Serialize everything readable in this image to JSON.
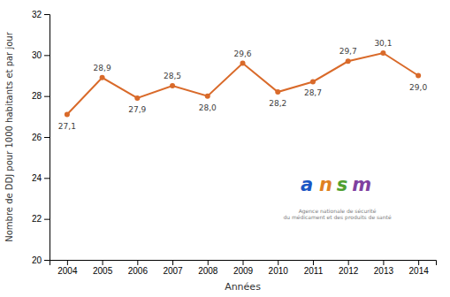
{
  "chart_data": {
    "type": "line",
    "x": [
      2004,
      2005,
      2006,
      2007,
      2008,
      2009,
      2010,
      2011,
      2012,
      2013,
      2014
    ],
    "values": [
      27.1,
      28.9,
      27.9,
      28.5,
      28.0,
      29.6,
      28.2,
      28.7,
      29.7,
      30.1,
      29.0
    ],
    "value_labels": [
      "27,1",
      "28,9",
      "27,9",
      "28,5",
      "28,0",
      "29,6",
      "28,2",
      "28,7",
      "29,7",
      "30,1",
      "29,0"
    ],
    "data_labels": true,
    "color": "#D96A2A",
    "marker": "circle",
    "xlabel": "Années",
    "ylabel": "Nombre de DDJ pour 1000 habitants et par jour",
    "xlim": [
      2003.5,
      2014.5
    ],
    "xticks": [
      2004,
      2005,
      2006,
      2007,
      2008,
      2009,
      2010,
      2011,
      2012,
      2013,
      2014
    ],
    "ylim": [
      20,
      32
    ],
    "yticks": [
      20,
      22,
      24,
      26,
      28,
      30,
      32
    ],
    "grid": false,
    "annotations": [
      {
        "text": "a",
        "color": "#1A56C4"
      },
      {
        "text": "n",
        "color": "#E08020"
      },
      {
        "text": "s",
        "color": "#50A030"
      },
      {
        "text": "m",
        "color": "#8040A0"
      },
      {
        "text": "Agence nationale de sécurité\ndu médicament et des produits de santé"
      }
    ]
  }
}
